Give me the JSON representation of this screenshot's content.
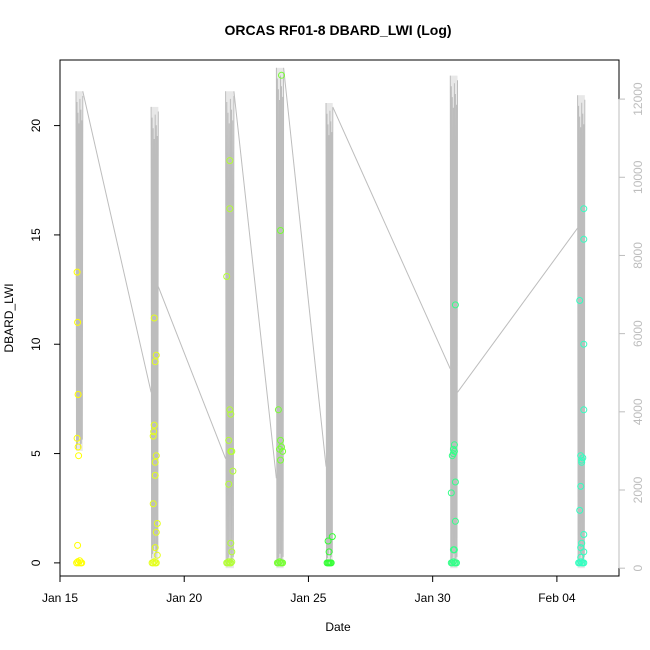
{
  "chart_data": {
    "type": "scatter",
    "title": "ORCAS RF01-8 DBARD_LWI (Log)",
    "xlabel": "Date",
    "ylabel": "DBARD_LWI",
    "xlim": [
      "2016-01-15T00:00",
      "2016-02-06T12:00"
    ],
    "ylim": [
      -0.6,
      23.0
    ],
    "y2lim": [
      -200,
      13000
    ],
    "x_ticks": [
      {
        "value": "2016-01-15",
        "label": "Jan 15"
      },
      {
        "value": "2016-01-20",
        "label": "Jan 20"
      },
      {
        "value": "2016-01-25",
        "label": "Jan 25"
      },
      {
        "value": "2016-01-30",
        "label": "Jan 30"
      },
      {
        "value": "2016-02-04",
        "label": "Feb 04"
      }
    ],
    "y_ticks": [
      0,
      5,
      10,
      15,
      20
    ],
    "y2_ticks": [
      0,
      2000,
      4000,
      6000,
      8000,
      10000,
      12000
    ],
    "grid": false,
    "colors": {
      "line": "#bdbdbd",
      "axis": "#000000",
      "right_axis": "#bdbdbd"
    },
    "series": [
      {
        "color": "#FFFF00",
        "points": [
          [
            "2016-01-15T16:00",
            0.0
          ],
          [
            "2016-01-15T17:00",
            0.05
          ],
          [
            "2016-01-15T18:00",
            0.0
          ],
          [
            "2016-01-15T19:00",
            0.1
          ],
          [
            "2016-01-15T20:00",
            0.0
          ],
          [
            "2016-01-15T21:00",
            0.0
          ],
          [
            "2016-01-15T16:30",
            13.3
          ],
          [
            "2016-01-15T17:00",
            11.0
          ],
          [
            "2016-01-15T17:30",
            7.7
          ],
          [
            "2016-01-15T16:30",
            5.7
          ],
          [
            "2016-01-15T17:30",
            5.3
          ],
          [
            "2016-01-15T18:00",
            4.9
          ],
          [
            "2016-01-15T17:00",
            0.8
          ]
        ]
      },
      {
        "color": "#E4FF1A",
        "points": [
          [
            "2016-01-18T17:00",
            0.0
          ],
          [
            "2016-01-18T18:00",
            0.0
          ],
          [
            "2016-01-18T19:00",
            0.05
          ],
          [
            "2016-01-18T20:00",
            0.0
          ],
          [
            "2016-01-18T21:00",
            0.0
          ],
          [
            "2016-01-18T19:00",
            11.2
          ],
          [
            "2016-01-18T21:00",
            9.5
          ],
          [
            "2016-01-18T20:00",
            9.2
          ],
          [
            "2016-01-18T19:00",
            6.3
          ],
          [
            "2016-01-18T18:30",
            6.0
          ],
          [
            "2016-01-18T18:00",
            5.8
          ],
          [
            "2016-01-18T21:00",
            4.9
          ],
          [
            "2016-01-18T20:00",
            4.6
          ],
          [
            "2016-01-18T20:00",
            4.0
          ],
          [
            "2016-01-18T18:00",
            2.7
          ],
          [
            "2016-01-18T22:00",
            1.8
          ],
          [
            "2016-01-18T21:00",
            1.4
          ],
          [
            "2016-01-18T20:00",
            0.7
          ],
          [
            "2016-01-18T22:00",
            0.35
          ]
        ]
      },
      {
        "color": "#B3FF33",
        "points": [
          [
            "2016-01-21T17:00",
            0.0
          ],
          [
            "2016-01-21T18:00",
            0.0
          ],
          [
            "2016-01-21T19:00",
            0.05
          ],
          [
            "2016-01-21T20:00",
            0.0
          ],
          [
            "2016-01-21T21:00",
            0.0
          ],
          [
            "2016-01-21T22:00",
            0.05
          ],
          [
            "2016-01-21T20:00",
            18.4
          ],
          [
            "2016-01-21T20:00",
            16.2
          ],
          [
            "2016-01-21T17:00",
            13.1
          ],
          [
            "2016-01-21T20:00",
            7.0
          ],
          [
            "2016-01-21T21:00",
            6.8
          ],
          [
            "2016-01-21T19:00",
            5.6
          ],
          [
            "2016-01-21T21:00",
            5.1
          ],
          [
            "2016-01-21T22:00",
            5.1
          ],
          [
            "2016-01-21T23:00",
            4.2
          ],
          [
            "2016-01-21T19:00",
            3.6
          ],
          [
            "2016-01-21T21:00",
            0.9
          ],
          [
            "2016-01-21T22:00",
            0.5
          ]
        ]
      },
      {
        "color": "#77FF33",
        "points": [
          [
            "2016-01-23T18:00",
            0.0
          ],
          [
            "2016-01-23T19:00",
            0.0
          ],
          [
            "2016-01-23T20:00",
            0.05
          ],
          [
            "2016-01-23T21:00",
            0.0
          ],
          [
            "2016-01-23T22:00",
            0.0
          ],
          [
            "2016-01-23T23:00",
            0.0
          ],
          [
            "2016-01-23T22:00",
            22.3
          ],
          [
            "2016-01-23T21:00",
            15.2
          ],
          [
            "2016-01-23T19:00",
            7.0
          ],
          [
            "2016-01-23T21:00",
            5.6
          ],
          [
            "2016-01-23T22:00",
            5.3
          ],
          [
            "2016-01-23T20:00",
            5.2
          ],
          [
            "2016-01-23T23:00",
            5.1
          ],
          [
            "2016-01-23T21:00",
            4.7
          ]
        ]
      },
      {
        "color": "#33FF33",
        "points": [
          [
            "2016-01-25T18:00",
            0.0
          ],
          [
            "2016-01-25T19:00",
            0.0
          ],
          [
            "2016-01-25T20:00",
            0.0
          ],
          [
            "2016-01-25T21:00",
            0.0
          ],
          [
            "2016-01-25T22:00",
            0.0
          ],
          [
            "2016-01-25T23:00",
            1.2
          ],
          [
            "2016-01-25T19:00",
            1.0
          ],
          [
            "2016-01-25T20:00",
            0.5
          ]
        ]
      },
      {
        "color": "#33FF88",
        "points": [
          [
            "2016-01-30T18:00",
            0.0
          ],
          [
            "2016-01-30T19:00",
            0.0
          ],
          [
            "2016-01-30T20:00",
            0.05
          ],
          [
            "2016-01-30T21:00",
            0.0
          ],
          [
            "2016-01-30T22:00",
            0.0
          ],
          [
            "2016-01-30T23:00",
            0.0
          ],
          [
            "2016-01-30T22:00",
            11.8
          ],
          [
            "2016-01-30T21:00",
            5.4
          ],
          [
            "2016-01-30T20:00",
            5.2
          ],
          [
            "2016-01-30T21:00",
            5.1
          ],
          [
            "2016-01-30T19:00",
            4.9
          ],
          [
            "2016-01-30T20:00",
            5.0
          ],
          [
            "2016-01-30T22:00",
            3.7
          ],
          [
            "2016-01-30T18:00",
            3.2
          ],
          [
            "2016-01-30T22:00",
            1.9
          ],
          [
            "2016-01-30T20:00",
            0.6
          ],
          [
            "2016-01-30T21:00",
            0.6
          ]
        ]
      },
      {
        "color": "#33FFC0",
        "points": [
          [
            "2016-02-04T21:00",
            0.0
          ],
          [
            "2016-02-04T22:00",
            0.0
          ],
          [
            "2016-02-04T23:00",
            0.05
          ],
          [
            "2016-02-05T00:00",
            0.0
          ],
          [
            "2016-02-05T01:00",
            0.0
          ],
          [
            "2016-02-05T02:00",
            0.0
          ],
          [
            "2016-02-05T02:00",
            16.2
          ],
          [
            "2016-02-05T02:00",
            14.8
          ],
          [
            "2016-02-04T22:00",
            12.0
          ],
          [
            "2016-02-05T02:00",
            10.0
          ],
          [
            "2016-02-05T02:00",
            7.0
          ],
          [
            "2016-02-04T23:00",
            4.9
          ],
          [
            "2016-02-05T01:00",
            4.8
          ],
          [
            "2016-02-05T00:00",
            4.7
          ],
          [
            "2016-02-05T00:00",
            4.6
          ],
          [
            "2016-02-04T23:00",
            3.5
          ],
          [
            "2016-02-04T22:00",
            2.4
          ],
          [
            "2016-02-05T02:00",
            1.3
          ],
          [
            "2016-02-05T00:00",
            0.9
          ],
          [
            "2016-02-04T23:00",
            0.7
          ],
          [
            "2016-02-05T02:00",
            0.5
          ],
          [
            "2016-02-04T23:00",
            0.25
          ]
        ]
      }
    ],
    "line_series": {
      "axis": "right",
      "flights": [
        {
          "start": "2016-01-15T15:30",
          "end": "2016-01-15T22:00",
          "min": 3000,
          "max": 12200,
          "end_value": 12200
        },
        {
          "start": "2016-01-18T16:00",
          "end": "2016-01-18T23:00",
          "min": 200,
          "max": 11800,
          "start_value": 4500,
          "end_value": 7200
        },
        {
          "start": "2016-01-21T16:00",
          "end": "2016-01-22T00:00",
          "min": 0,
          "max": 12200,
          "start_value": 2800,
          "end_value": 12200
        },
        {
          "start": "2016-01-23T17:00",
          "end": "2016-01-24T00:00",
          "min": 0,
          "max": 12800,
          "start_value": 2300,
          "end_value": 12800
        },
        {
          "start": "2016-01-25T17:00",
          "end": "2016-01-25T23:30",
          "min": 100,
          "max": 11900,
          "start_value": 2600,
          "end_value": 11800
        },
        {
          "start": "2016-01-30T17:00",
          "end": "2016-01-31T00:00",
          "min": 0,
          "max": 12600,
          "start_value": 5100,
          "end_value": 4500
        },
        {
          "start": "2016-02-04T20:00",
          "end": "2016-02-05T03:00",
          "min": 0,
          "max": 12100,
          "start_value": 8700
        }
      ]
    }
  }
}
